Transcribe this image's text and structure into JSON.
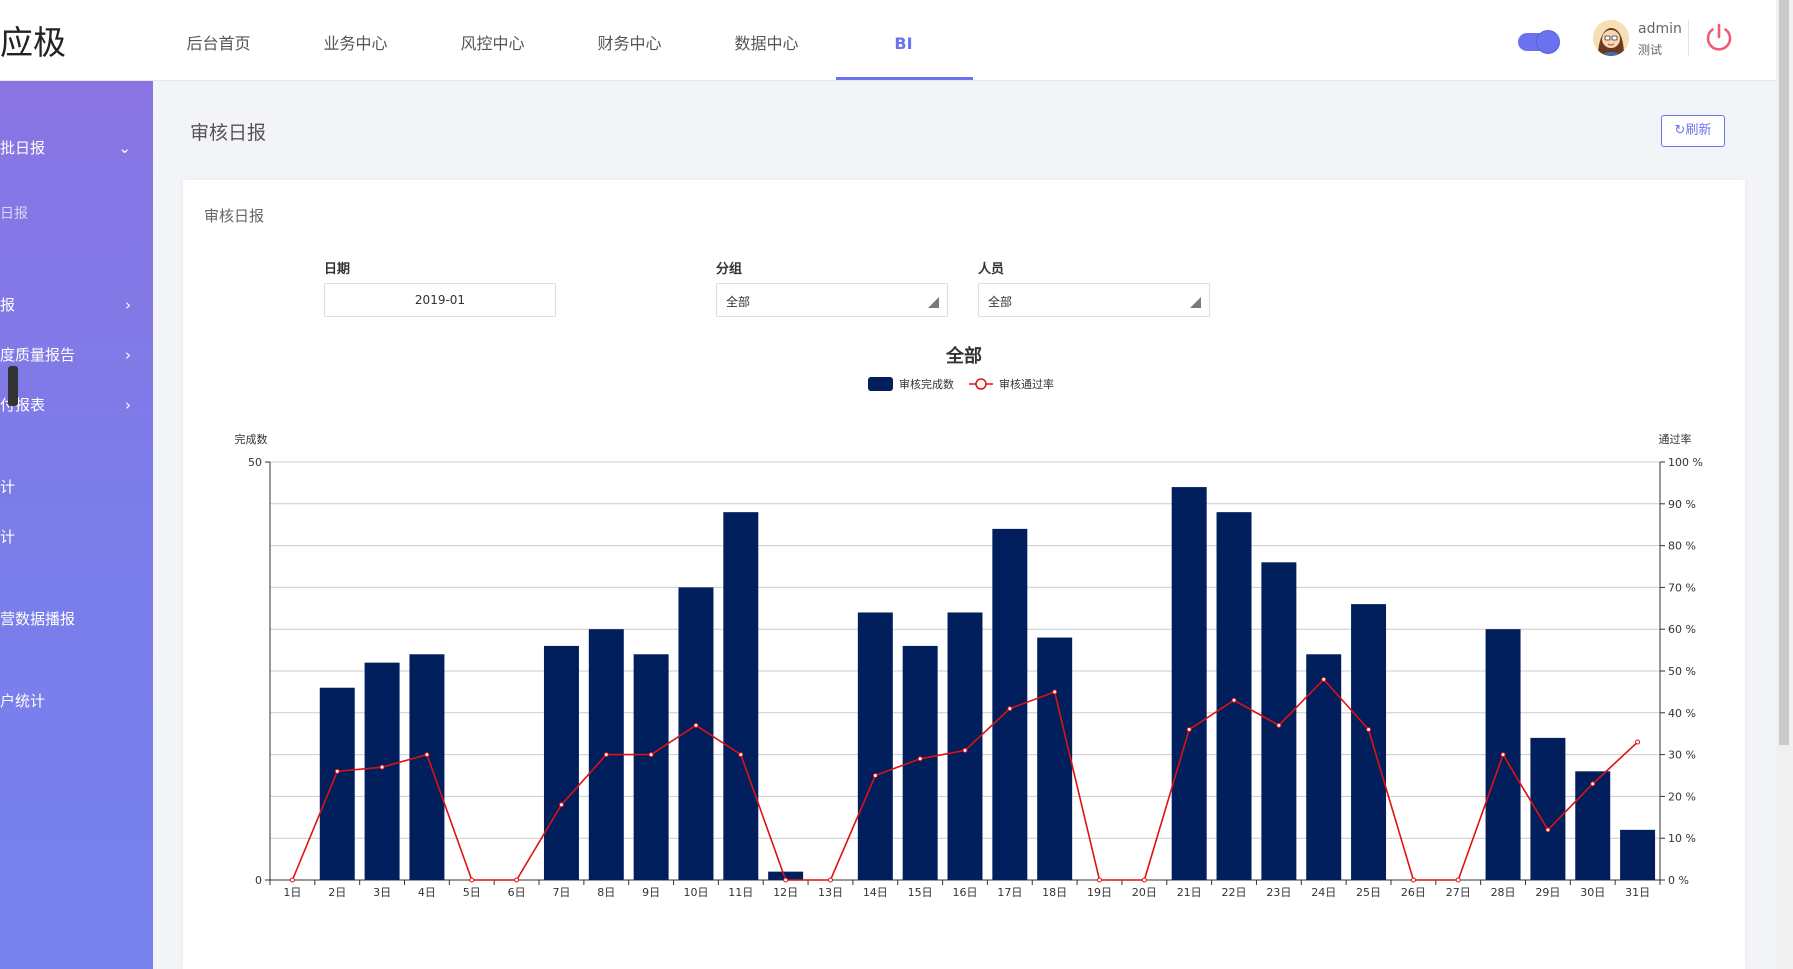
{
  "app": {
    "logo_text": "应极"
  },
  "top_nav": {
    "items": [
      {
        "label": "后台首页"
      },
      {
        "label": "业务中心"
      },
      {
        "label": "风控中心"
      },
      {
        "label": "财务中心"
      },
      {
        "label": "数据中心"
      },
      {
        "label": "BI"
      }
    ],
    "active_index": 5
  },
  "user": {
    "name": "admin",
    "role": "测试"
  },
  "sidebar": {
    "items": [
      {
        "label": "批日报"
      },
      {
        "label": "日报"
      },
      {
        "label": "报"
      },
      {
        "label": "度质量报告"
      },
      {
        "label": "付报表"
      },
      {
        "label": "计"
      },
      {
        "label": "计"
      },
      {
        "label": "营数据播报"
      },
      {
        "label": "户统计"
      }
    ]
  },
  "page": {
    "title": "审核日报",
    "refresh_label": "刷新"
  },
  "card": {
    "title": "审核日报",
    "filters": {
      "date_label": "日期",
      "date_value": "2019-01",
      "group_label": "分组",
      "group_value": "全部",
      "person_label": "人员",
      "person_value": "全部"
    }
  },
  "colors": {
    "accent": "#6b72f0",
    "bar": "#001f5c",
    "line": "#e01010",
    "power": "#f05a78"
  },
  "chart_data": {
    "type": "bar",
    "title": "全部",
    "legend": [
      "审核完成数",
      "审核通过率"
    ],
    "legend_position": "top-center",
    "grid": true,
    "categories": [
      "1日",
      "2日",
      "3日",
      "4日",
      "5日",
      "6日",
      "7日",
      "8日",
      "9日",
      "10日",
      "11日",
      "12日",
      "13日",
      "14日",
      "15日",
      "16日",
      "17日",
      "18日",
      "19日",
      "20日",
      "21日",
      "22日",
      "23日",
      "24日",
      "25日",
      "26日",
      "27日",
      "28日",
      "29日",
      "30日",
      "31日"
    ],
    "ylabel": "完成数",
    "ylim": [
      0,
      50
    ],
    "yticks": [
      0,
      50
    ],
    "y2label": "通过率",
    "y2lim": [
      0,
      100
    ],
    "y2ticks": [
      "0 %",
      "10 %",
      "20 %",
      "30 %",
      "40 %",
      "50 %",
      "60 %",
      "70 %",
      "80 %",
      "90 %",
      "100 %"
    ],
    "series": [
      {
        "name": "审核完成数",
        "type": "bar",
        "axis": "left",
        "values": [
          0,
          23,
          26,
          27,
          0,
          0,
          28,
          30,
          27,
          35,
          44,
          1,
          0,
          32,
          28,
          32,
          42,
          29,
          0,
          0,
          47,
          44,
          38,
          27,
          33,
          0,
          0,
          30,
          17,
          13,
          6
        ]
      },
      {
        "name": "审核通过率",
        "type": "line",
        "axis": "right",
        "values": [
          0,
          26,
          27,
          30,
          0,
          0,
          18,
          30,
          30,
          37,
          30,
          0,
          0,
          25,
          29,
          31,
          41,
          45,
          0,
          0,
          36,
          43,
          37,
          48,
          36,
          0,
          0,
          30,
          12,
          23,
          33
        ]
      }
    ]
  }
}
